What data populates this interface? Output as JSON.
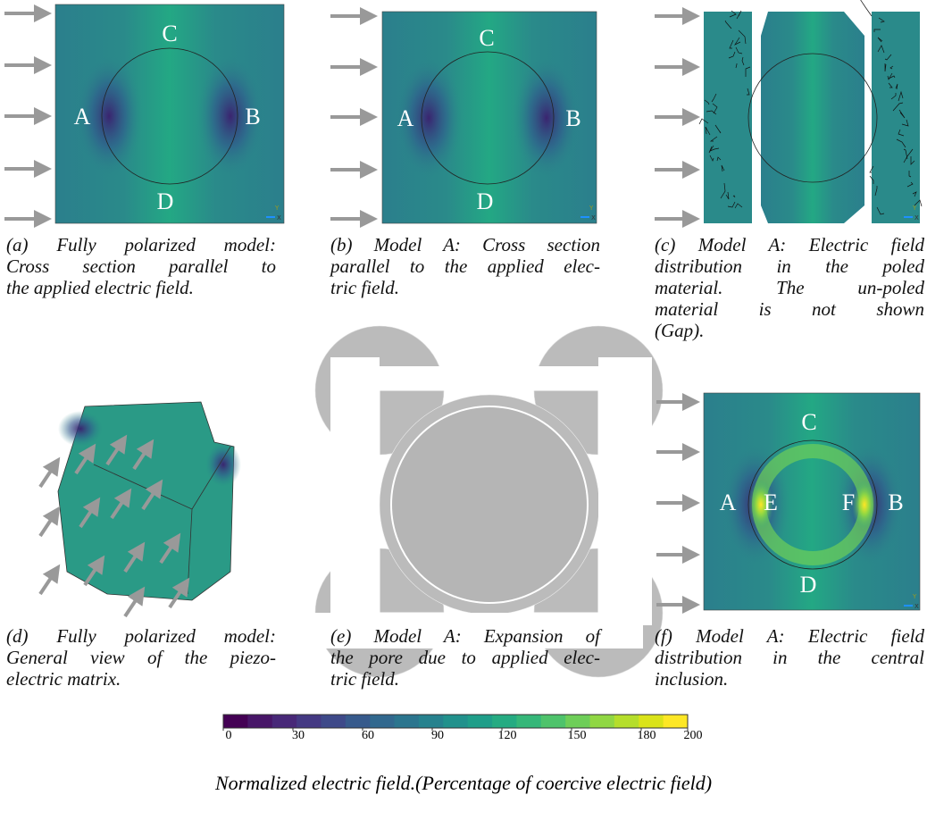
{
  "panels": [
    {
      "labels": [
        "A",
        "B",
        "C",
        "D"
      ],
      "caption": [
        "(a) Fully polarized model:",
        "Cross section parallel to",
        "the applied electric field."
      ]
    },
    {
      "labels": [
        "A",
        "B",
        "C",
        "D"
      ],
      "caption": [
        "(b) Model A: Cross section",
        "parallel to the applied elec-",
        "tric field."
      ]
    },
    {
      "caption": [
        "(c) Model A: Electric field",
        "distribution in the poled",
        "material. The un-poled",
        "material is not shown",
        "(Gap)."
      ]
    },
    {
      "caption": [
        "(d) Fully polarized model:",
        "General view of the piezo-",
        "electric matrix."
      ]
    },
    {
      "caption": [
        "(e) Model A: Expansion of",
        "the pore due to applied elec-",
        "tric field."
      ]
    },
    {
      "labels": [
        "A",
        "B",
        "C",
        "D",
        "E",
        "F"
      ],
      "caption": [
        "(f) Model A: Electric field",
        "distribution in the central",
        "inclusion."
      ]
    }
  ],
  "triad": {
    "y": "Y",
    "x": "X"
  },
  "colorbar": {
    "lim": [
      0,
      200
    ],
    "ticks": [
      0,
      30,
      60,
      90,
      120,
      150,
      180,
      200
    ],
    "colors": [
      "#440154",
      "#481668",
      "#482878",
      "#443983",
      "#3e4989",
      "#375a8c",
      "#31688e",
      "#2b758e",
      "#26828e",
      "#21918c",
      "#1f9e89",
      "#25ab82",
      "#35b779",
      "#4ec36b",
      "#6ece58",
      "#90d743",
      "#b5de2b",
      "#dae319",
      "#fde725"
    ]
  },
  "caption": "Normalized electric field.(Percentage of coercive electric field)"
}
